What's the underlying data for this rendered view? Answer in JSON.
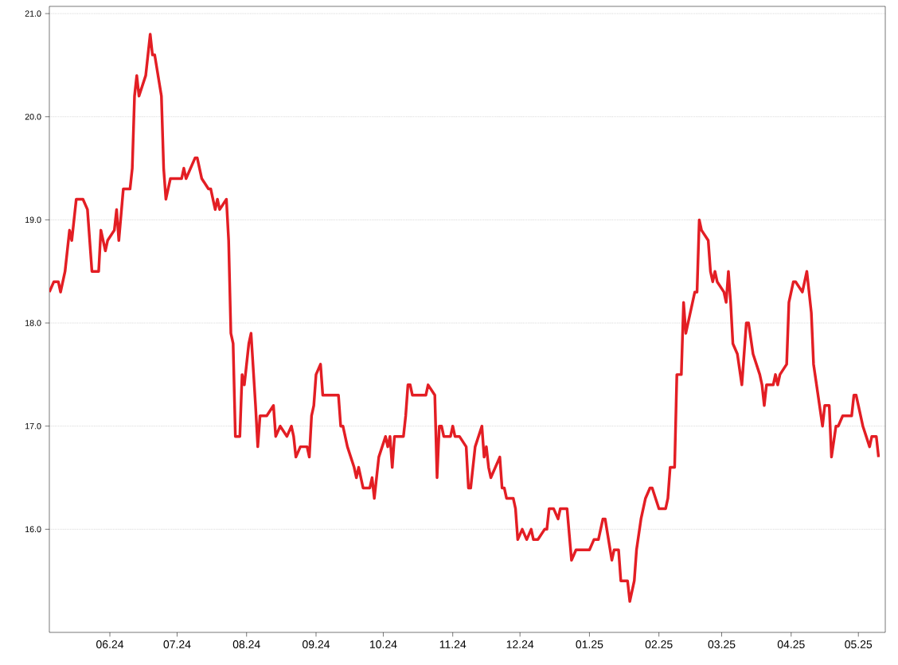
{
  "chart_data": {
    "type": "line",
    "x": [
      "2024-05-05",
      "2024-05-07",
      "2024-05-09",
      "2024-05-10",
      "2024-05-12",
      "2024-05-14",
      "2024-05-15",
      "2024-05-17",
      "2024-05-20",
      "2024-05-22",
      "2024-05-24",
      "2024-05-27",
      "2024-05-28",
      "2024-05-30",
      "2024-05-31",
      "2024-06-03",
      "2024-06-04",
      "2024-06-05",
      "2024-06-07",
      "2024-06-10",
      "2024-06-11",
      "2024-06-12",
      "2024-06-13",
      "2024-06-14",
      "2024-06-17",
      "2024-06-19",
      "2024-06-20",
      "2024-06-21",
      "2024-06-24",
      "2024-06-25",
      "2024-06-26",
      "2024-06-28",
      "2024-07-03",
      "2024-07-04",
      "2024-07-05",
      "2024-07-09",
      "2024-07-10",
      "2024-07-11",
      "2024-07-12",
      "2024-07-15",
      "2024-07-16",
      "2024-07-18",
      "2024-07-19",
      "2024-07-20",
      "2024-07-23",
      "2024-07-24",
      "2024-07-25",
      "2024-07-26",
      "2024-07-27",
      "2024-07-29",
      "2024-07-30",
      "2024-07-31",
      "2024-08-02",
      "2024-08-03",
      "2024-08-05",
      "2024-08-06",
      "2024-08-07",
      "2024-08-10",
      "2024-08-13",
      "2024-08-14",
      "2024-08-16",
      "2024-08-19",
      "2024-08-21",
      "2024-08-22",
      "2024-08-23",
      "2024-08-25",
      "2024-08-28",
      "2024-08-29",
      "2024-08-30",
      "2024-08-31",
      "2024-09-01",
      "2024-09-03",
      "2024-09-04",
      "2024-09-11",
      "2024-09-12",
      "2024-09-13",
      "2024-09-15",
      "2024-09-18",
      "2024-09-19",
      "2024-09-20",
      "2024-09-22",
      "2024-09-25",
      "2024-09-26",
      "2024-09-27",
      "2024-09-29",
      "2024-10-02",
      "2024-10-03",
      "2024-10-04",
      "2024-10-05",
      "2024-10-06",
      "2024-10-10",
      "2024-10-11",
      "2024-10-12",
      "2024-10-13",
      "2024-10-14",
      "2024-10-20",
      "2024-10-21",
      "2024-10-24",
      "2024-10-25",
      "2024-10-26",
      "2024-10-27",
      "2024-10-28",
      "2024-10-31",
      "2024-11-01",
      "2024-11-02",
      "2024-11-04",
      "2024-11-07",
      "2024-11-08",
      "2024-11-09",
      "2024-11-11",
      "2024-11-14",
      "2024-11-15",
      "2024-11-16",
      "2024-11-17",
      "2024-11-18",
      "2024-11-22",
      "2024-11-23",
      "2024-11-24",
      "2024-11-25",
      "2024-11-28",
      "2024-11-29",
      "2024-11-30",
      "2024-12-02",
      "2024-12-04",
      "2024-12-06",
      "2024-12-07",
      "2024-12-09",
      "2024-12-12",
      "2024-12-13",
      "2024-12-14",
      "2024-12-16",
      "2024-12-18",
      "2024-12-19",
      "2024-12-22",
      "2024-12-24",
      "2024-12-26",
      "2025-01-01",
      "2025-01-03",
      "2025-01-05",
      "2025-01-07",
      "2025-01-08",
      "2025-01-11",
      "2025-01-12",
      "2025-01-14",
      "2025-01-15",
      "2025-01-18",
      "2025-01-19",
      "2025-01-21",
      "2025-01-22",
      "2025-01-24",
      "2025-01-26",
      "2025-01-28",
      "2025-01-29",
      "2025-02-01",
      "2025-02-04",
      "2025-02-05",
      "2025-02-06",
      "2025-02-08",
      "2025-02-09",
      "2025-02-11",
      "2025-02-12",
      "2025-02-13",
      "2025-02-15",
      "2025-02-17",
      "2025-02-18",
      "2025-02-19",
      "2025-02-20",
      "2025-02-23",
      "2025-02-24",
      "2025-02-25",
      "2025-02-26",
      "2025-02-27",
      "2025-03-02",
      "2025-03-03",
      "2025-03-04",
      "2025-03-05",
      "2025-03-06",
      "2025-03-08",
      "2025-03-10",
      "2025-03-12",
      "2025-03-13",
      "2025-03-15",
      "2025-03-18",
      "2025-03-19",
      "2025-03-20",
      "2025-03-21",
      "2025-03-24",
      "2025-03-25",
      "2025-03-26",
      "2025-03-27",
      "2025-03-30",
      "2025-03-31",
      "2025-04-02",
      "2025-04-03",
      "2025-04-06",
      "2025-04-08",
      "2025-04-10",
      "2025-04-11",
      "2025-04-13",
      "2025-04-15",
      "2025-04-16",
      "2025-04-18",
      "2025-04-19",
      "2025-04-21",
      "2025-04-22",
      "2025-04-24",
      "2025-04-28",
      "2025-04-29",
      "2025-04-30",
      "2025-05-03",
      "2025-05-06",
      "2025-05-07",
      "2025-05-09",
      "2025-05-10"
    ],
    "series": [
      {
        "color": "#e31e24",
        "values": [
          18.3,
          18.4,
          18.4,
          18.3,
          18.5,
          18.9,
          18.8,
          19.2,
          19.2,
          19.1,
          18.5,
          18.5,
          18.9,
          18.7,
          18.8,
          18.9,
          19.1,
          18.8,
          19.3,
          19.3,
          19.5,
          20.2,
          20.4,
          20.2,
          20.4,
          20.8,
          20.6,
          20.6,
          20.2,
          19.5,
          19.2,
          19.4,
          19.4,
          19.5,
          19.4,
          19.6,
          19.6,
          19.5,
          19.4,
          19.3,
          19.3,
          19.1,
          19.2,
          19.1,
          19.2,
          18.8,
          17.9,
          17.8,
          16.9,
          16.9,
          17.5,
          17.4,
          17.8,
          17.9,
          17.2,
          16.8,
          17.1,
          17.1,
          17.2,
          16.9,
          17.0,
          16.9,
          17.0,
          16.9,
          16.7,
          16.8,
          16.8,
          16.7,
          17.1,
          17.2,
          17.5,
          17.6,
          17.3,
          17.3,
          17.0,
          17.0,
          16.8,
          16.6,
          16.5,
          16.6,
          16.4,
          16.4,
          16.5,
          16.3,
          16.7,
          16.9,
          16.8,
          16.9,
          16.6,
          16.9,
          16.9,
          17.1,
          17.4,
          17.4,
          17.3,
          17.3,
          17.4,
          17.3,
          16.5,
          17.0,
          17.0,
          16.9,
          16.9,
          17.0,
          16.9,
          16.9,
          16.8,
          16.4,
          16.4,
          16.8,
          17.0,
          16.7,
          16.8,
          16.6,
          16.5,
          16.7,
          16.4,
          16.4,
          16.3,
          16.3,
          16.2,
          15.9,
          16.0,
          15.9,
          16.0,
          15.9,
          15.9,
          16.0,
          16.0,
          16.2,
          16.2,
          16.1,
          16.2,
          16.2,
          15.7,
          15.8,
          15.8,
          15.9,
          15.9,
          16.1,
          16.1,
          15.7,
          15.8,
          15.8,
          15.5,
          15.5,
          15.3,
          15.5,
          15.8,
          16.1,
          16.3,
          16.4,
          16.4,
          16.2,
          16.2,
          16.3,
          16.6,
          16.6,
          17.5,
          17.5,
          18.2,
          17.9,
          18.1,
          18.3,
          18.3,
          19.0,
          18.9,
          18.8,
          18.5,
          18.4,
          18.5,
          18.4,
          18.3,
          18.2,
          18.5,
          18.2,
          17.8,
          17.7,
          17.4,
          18.0,
          18.0,
          17.7,
          17.5,
          17.4,
          17.2,
          17.4,
          17.4,
          17.5,
          17.4,
          17.5,
          17.6,
          18.2,
          18.4,
          18.4,
          18.3,
          18.5,
          18.1,
          17.6,
          17.3,
          17.0,
          17.2,
          17.2,
          16.7,
          17.0,
          17.0,
          17.1,
          17.1,
          17.3,
          17.3,
          17.0,
          16.8,
          16.9,
          16.9,
          16.7
        ]
      }
    ],
    "xlim": [
      "2024-05-05",
      "2025-05-13"
    ],
    "xticks": [
      {
        "value": "2024-06-01",
        "label": "06.24"
      },
      {
        "value": "2024-07-01",
        "label": "07.24"
      },
      {
        "value": "2024-08-01",
        "label": "08.24"
      },
      {
        "value": "2024-09-01",
        "label": "09.24"
      },
      {
        "value": "2024-10-01",
        "label": "10.24"
      },
      {
        "value": "2024-11-01",
        "label": "11.24"
      },
      {
        "value": "2024-12-01",
        "label": "12.24"
      },
      {
        "value": "2025-01-01",
        "label": "01.25"
      },
      {
        "value": "2025-02-01",
        "label": "02.25"
      },
      {
        "value": "2025-03-01",
        "label": "03.25"
      },
      {
        "value": "2025-04-01",
        "label": "04.25"
      },
      {
        "value": "2025-05-01",
        "label": "05.25"
      }
    ],
    "ylim": [
      15.0,
      21.07
    ],
    "yticks": [
      {
        "value": 16,
        "label": "16.0"
      },
      {
        "value": 17,
        "label": "17.0"
      },
      {
        "value": 18,
        "label": "18.0"
      },
      {
        "value": 19,
        "label": "19.0"
      },
      {
        "value": 20,
        "label": "20.0"
      },
      {
        "value": 21,
        "label": "21.0"
      }
    ],
    "grid": "y",
    "marker": "none",
    "line_style": "solid"
  }
}
